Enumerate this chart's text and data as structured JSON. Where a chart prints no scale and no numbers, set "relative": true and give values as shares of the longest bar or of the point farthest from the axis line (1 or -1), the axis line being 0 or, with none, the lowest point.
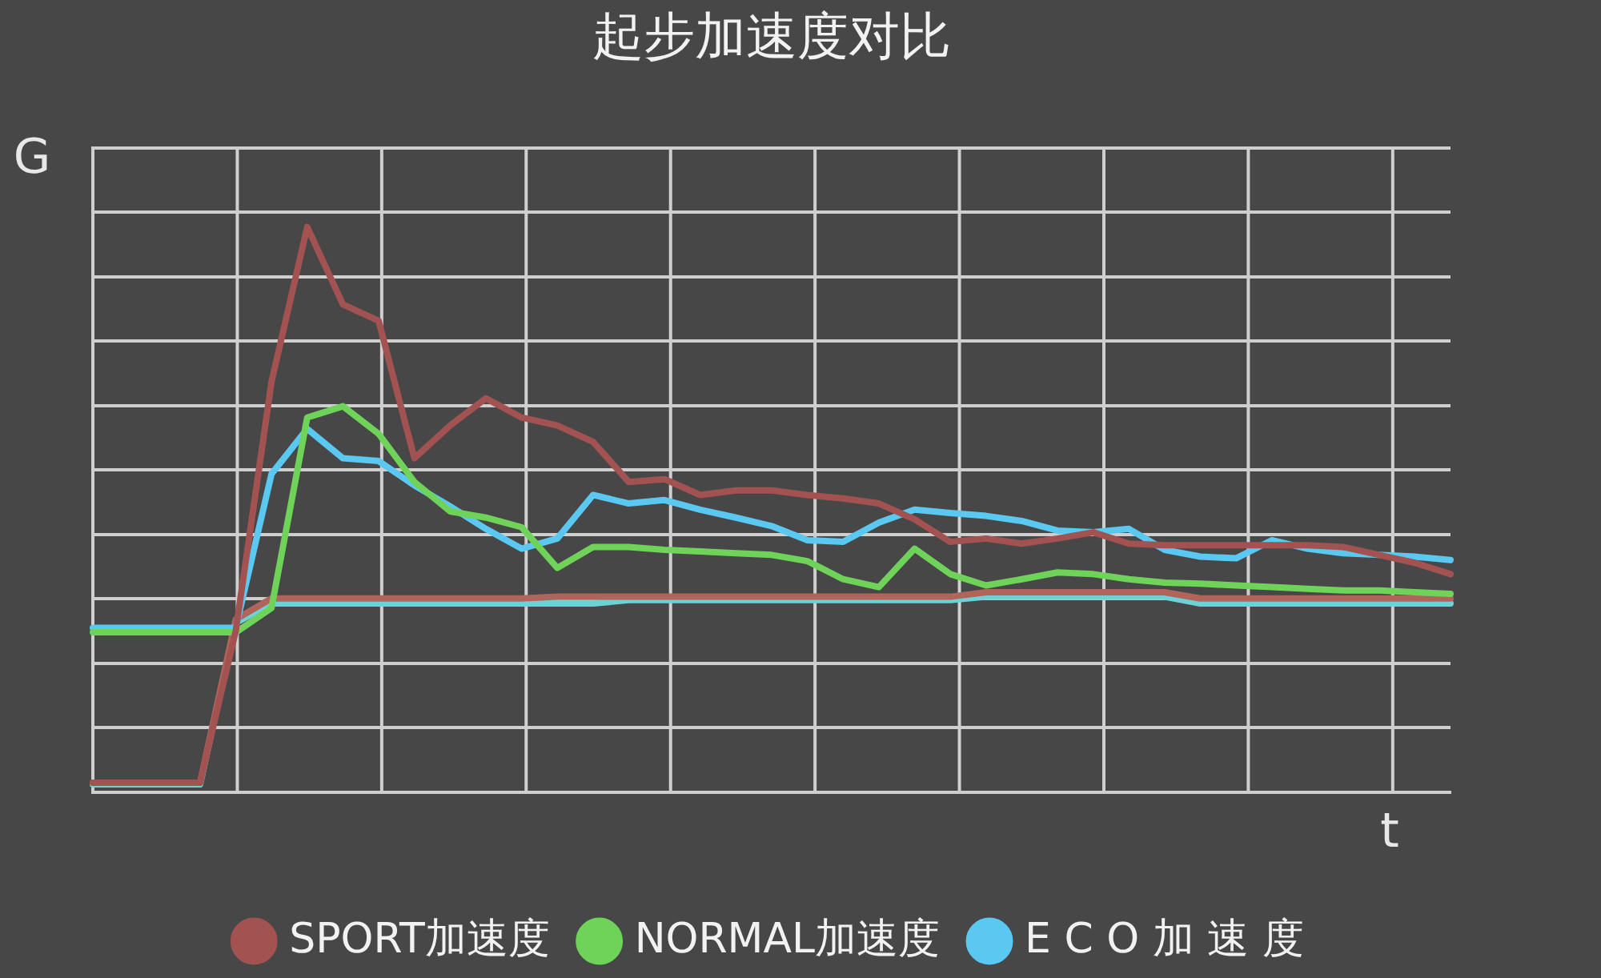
{
  "chart_data": {
    "type": "line",
    "title": "起步加速度对比",
    "xlabel": "t",
    "ylabel": "G",
    "relative": true,
    "grid": true,
    "legend": "bottom",
    "marker": "none",
    "categories": [
      null,
      null,
      null,
      null,
      null,
      null,
      null,
      null,
      null,
      null,
      null,
      null,
      null,
      null,
      null,
      null,
      null,
      null,
      null,
      null,
      null,
      null,
      null,
      null,
      null,
      null,
      null,
      null,
      null,
      null,
      null,
      null,
      null,
      null,
      null,
      null,
      null,
      null,
      null
    ],
    "series": [
      {
        "name": "SPORT加速度",
        "color": "#a35252",
        "values": [
          0.017,
          0.017,
          0.017,
          0.017,
          0.286,
          0.726,
          1,
          0.863,
          0.834,
          0.591,
          0.649,
          0.697,
          0.663,
          0.649,
          0.62,
          0.549,
          0.554,
          0.526,
          0.534,
          0.534,
          0.526,
          0.52,
          0.511,
          0.483,
          0.443,
          0.449,
          0.44,
          0.449,
          0.46,
          0.44,
          0.437,
          0.437,
          0.437,
          0.437,
          0.437,
          0.434,
          0.42,
          0.406,
          0.386
        ]
      },
      {
        "name": "NORMAL加速度",
        "color": "#6fd35a",
        "values": [
          0.283,
          0.283,
          0.283,
          0.283,
          0.283,
          0.326,
          0.663,
          0.683,
          0.634,
          0.549,
          0.497,
          0.486,
          0.469,
          0.397,
          0.434,
          0.434,
          0.429,
          0.426,
          0.423,
          0.42,
          0.409,
          0.377,
          0.363,
          0.431,
          0.386,
          0.366,
          0.377,
          0.389,
          0.386,
          0.377,
          0.371,
          0.369,
          0.366,
          0.363,
          0.36,
          0.357,
          0.357,
          0.354,
          0.351
        ]
      },
      {
        "name": "E C O 加 速 度",
        "color": "#5ac8f0",
        "values": [
          0.291,
          0.291,
          0.291,
          0.291,
          0.291,
          0.563,
          0.643,
          0.591,
          0.586,
          0.543,
          0.506,
          0.466,
          0.431,
          0.449,
          0.526,
          0.511,
          0.517,
          0.5,
          0.486,
          0.471,
          0.446,
          0.443,
          0.477,
          0.5,
          0.494,
          0.489,
          0.48,
          0.463,
          0.46,
          0.466,
          0.429,
          0.417,
          0.414,
          0.446,
          0.431,
          0.423,
          0.42,
          0.417,
          0.411
        ]
      },
      {
        "color": "#b0645a",
        "values": [
          0.017,
          0.017,
          0.017,
          0.017,
          0.306,
          0.343,
          0.343,
          0.343,
          0.343,
          0.343,
          0.343,
          0.343,
          0.343,
          0.346,
          0.346,
          0.346,
          0.346,
          0.346,
          0.346,
          0.346,
          0.346,
          0.346,
          0.346,
          0.346,
          0.346,
          0.354,
          0.354,
          0.354,
          0.354,
          0.354,
          0.354,
          0.343,
          0.343,
          0.343,
          0.343,
          0.343,
          0.343,
          0.343,
          0.343
        ]
      },
      {
        "color": "#6cd2d8",
        "values": [
          0.014,
          0.014,
          0.014,
          0.014,
          0.3,
          0.334,
          0.334,
          0.334,
          0.334,
          0.334,
          0.334,
          0.334,
          0.334,
          0.334,
          0.334,
          0.34,
          0.34,
          0.34,
          0.34,
          0.34,
          0.34,
          0.34,
          0.34,
          0.34,
          0.34,
          0.346,
          0.346,
          0.346,
          0.346,
          0.346,
          0.346,
          0.334,
          0.334,
          0.334,
          0.334,
          0.334,
          0.334,
          0.334,
          0.334
        ]
      }
    ]
  }
}
